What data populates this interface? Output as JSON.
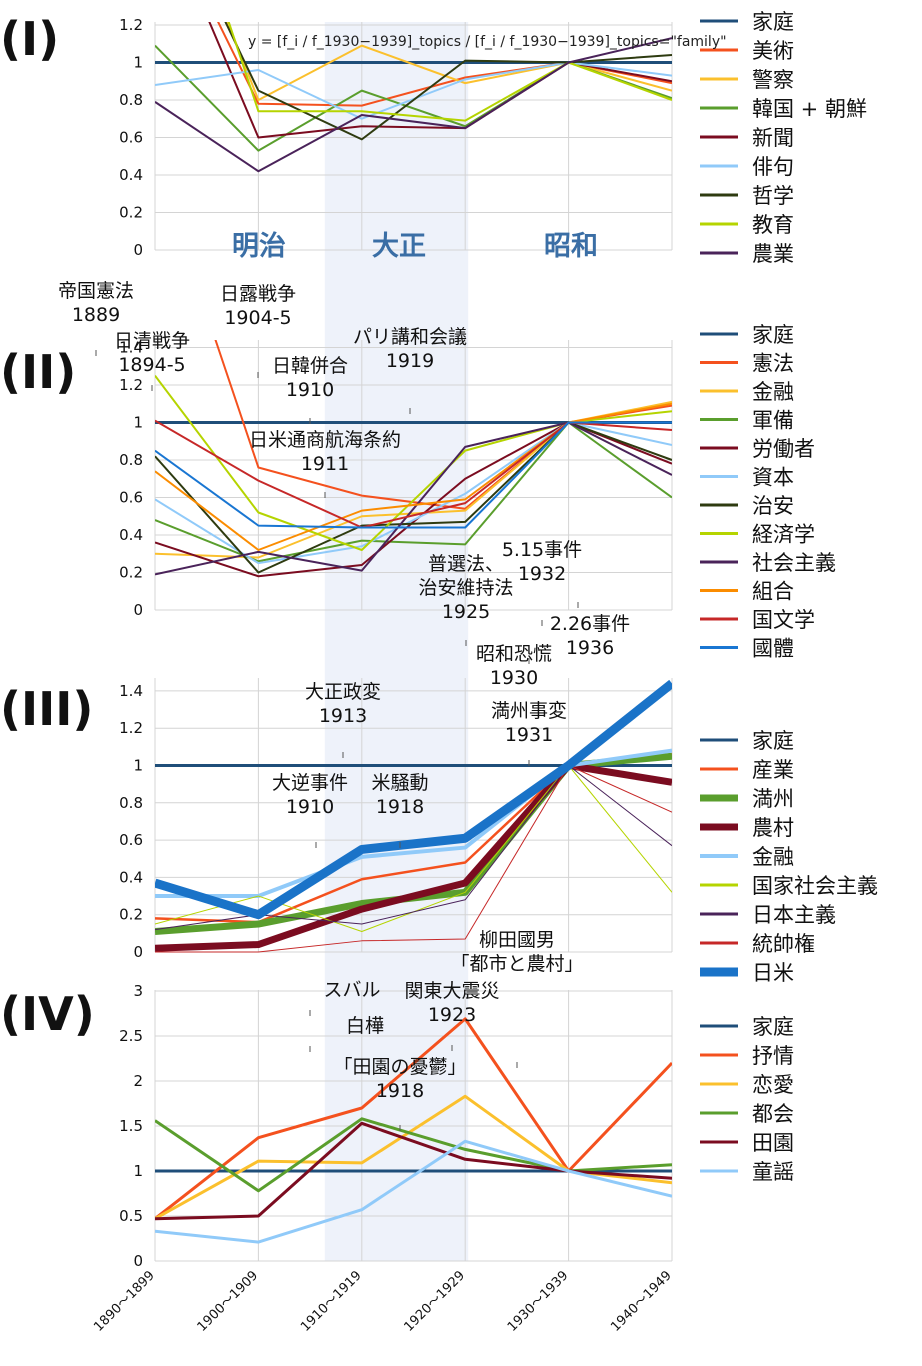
{
  "categories": [
    "1890～1899",
    "1900～1909",
    "1910～1919",
    "1920～1929",
    "1930～1939",
    "1940～1949"
  ],
  "shade": {
    "from": 1910,
    "to": 1929,
    "color": "#eef2fa"
  },
  "formula": "y = [f_i / f_1930−1939]_topics / [f_i / f_1930−1939]_topics=\"family\"",
  "era_labels": [
    "明治",
    "大正",
    "昭和"
  ],
  "chart_data": [
    {
      "type": "line",
      "panel": "(I)",
      "ylim": [
        0,
        1.5
      ],
      "yticks": [
        "0",
        "0.2",
        "0.4",
        "0.6",
        "0.8",
        "1",
        "1.2",
        "1.4"
      ],
      "grid": true,
      "legend": "right",
      "series": [
        {
          "name": "家庭",
          "color": "#1f4e79",
          "width": 3,
          "values": [
            1,
            1,
            1,
            1,
            1,
            1
          ]
        },
        {
          "name": "美術",
          "color": "#f4511e",
          "width": 2,
          "values": [
            1.9,
            0.78,
            0.77,
            0.92,
            1,
            0.89
          ]
        },
        {
          "name": "警察",
          "color": "#fbc02d",
          "width": 2,
          "values": [
            2.2,
            0.8,
            1.09,
            0.89,
            1,
            0.85
          ]
        },
        {
          "name": "韓国 + 朝鮮",
          "color": "#5a9e2d",
          "width": 2,
          "values": [
            1.09,
            0.53,
            0.85,
            0.66,
            1,
            0.81
          ]
        },
        {
          "name": "新聞",
          "color": "#7b0c20",
          "width": 2,
          "values": [
            1.9,
            0.6,
            0.66,
            0.65,
            1,
            0.9
          ]
        },
        {
          "name": "俳句",
          "color": "#90caf9",
          "width": 2,
          "values": [
            0.88,
            0.96,
            0.7,
            0.91,
            1,
            0.93
          ]
        },
        {
          "name": "哲学",
          "color": "#2e3b10",
          "width": 2,
          "values": [
            2.0,
            0.85,
            0.59,
            1.01,
            1,
            1.04
          ]
        },
        {
          "name": "教育",
          "color": "#b5d400",
          "width": 2,
          "values": [
            2.4,
            0.74,
            0.74,
            0.69,
            1,
            0.8
          ]
        },
        {
          "name": "農業",
          "color": "#4a235a",
          "width": 2,
          "values": [
            0.79,
            0.42,
            0.72,
            0.65,
            1,
            1.13
          ]
        }
      ]
    },
    {
      "type": "line",
      "panel": "(II)",
      "ylim": [
        0,
        1.5
      ],
      "yticks": [
        "0",
        "0.2",
        "0.4",
        "0.6",
        "0.8",
        "1",
        "1.2",
        "1.4"
      ],
      "grid": true,
      "legend": "right",
      "series": [
        {
          "name": "家庭",
          "color": "#1f4e79",
          "width": 3,
          "values": [
            1,
            1,
            1,
            1,
            1,
            1
          ]
        },
        {
          "name": "憲法",
          "color": "#f4511e",
          "width": 2,
          "values": [
            2.4,
            0.76,
            0.61,
            0.54,
            1,
            1.09
          ]
        },
        {
          "name": "金融",
          "color": "#fbc02d",
          "width": 2,
          "values": [
            0.3,
            0.28,
            0.5,
            0.53,
            1,
            1.11
          ]
        },
        {
          "name": "軍備",
          "color": "#5a9e2d",
          "width": 2,
          "values": [
            0.48,
            0.26,
            0.37,
            0.35,
            1,
            0.6
          ]
        },
        {
          "name": "労働者",
          "color": "#7b0c20",
          "width": 2,
          "values": [
            0.36,
            0.18,
            0.24,
            0.7,
            1,
            0.78
          ]
        },
        {
          "name": "資本",
          "color": "#90caf9",
          "width": 2,
          "values": [
            0.59,
            0.25,
            0.34,
            0.62,
            1,
            0.88
          ]
        },
        {
          "name": "治安",
          "color": "#2e3b10",
          "width": 2,
          "values": [
            0.82,
            0.2,
            0.45,
            0.47,
            1,
            0.8
          ]
        },
        {
          "name": "経済学",
          "color": "#b5d400",
          "width": 2,
          "values": [
            1.25,
            0.52,
            0.32,
            0.85,
            1,
            1.06
          ]
        },
        {
          "name": "社会主義",
          "color": "#4a235a",
          "width": 2,
          "values": [
            0.19,
            0.31,
            0.21,
            0.87,
            1,
            0.72
          ]
        },
        {
          "name": "組合",
          "color": "#fb8c00",
          "width": 2,
          "values": [
            0.74,
            0.32,
            0.53,
            0.59,
            1,
            1.1
          ]
        },
        {
          "name": "国文学",
          "color": "#c62828",
          "width": 2,
          "values": [
            1.01,
            0.69,
            0.44,
            0.57,
            1,
            0.96
          ]
        },
        {
          "name": "國體",
          "color": "#1976d2",
          "width": 2,
          "values": [
            0.85,
            0.45,
            0.44,
            0.44,
            1,
            1.0
          ]
        }
      ],
      "annotations": [
        {
          "text": [
            "帝国憲法",
            "1889"
          ]
        },
        {
          "text": [
            "日露戦争",
            "1904-5"
          ]
        },
        {
          "text": [
            "日清戦争",
            "1894-5"
          ]
        },
        {
          "text": [
            "日韓併合",
            "1910"
          ]
        },
        {
          "text": [
            "パリ講和会議",
            "1919"
          ]
        },
        {
          "text": [
            "日米通商航海条約",
            "1911"
          ]
        },
        {
          "text": [
            "普選法、",
            "治安維持法",
            "1925"
          ]
        },
        {
          "text": [
            "5.15事件",
            "1932"
          ]
        },
        {
          "text": [
            "2.26事件",
            "1936"
          ]
        }
      ]
    },
    {
      "type": "line",
      "panel": "(III)",
      "ylim": [
        0,
        1.5
      ],
      "yticks": [
        "0",
        "0.2",
        "0.4",
        "0.6",
        "0.8",
        "1",
        "1.2",
        "1.4"
      ],
      "grid": true,
      "legend": "right",
      "series": [
        {
          "name": "家庭",
          "color": "#1f4e79",
          "width": 3,
          "values": [
            1,
            1,
            1,
            1,
            1,
            1
          ]
        },
        {
          "name": "産業",
          "color": "#f4511e",
          "width": 2.5,
          "values": [
            0.18,
            0.16,
            0.39,
            0.48,
            1,
            1.06
          ]
        },
        {
          "name": "満州",
          "color": "#5a9e2d",
          "width": 7,
          "values": [
            0.11,
            0.15,
            0.26,
            0.32,
            1,
            1.05
          ]
        },
        {
          "name": "農村",
          "color": "#7b0c20",
          "width": 7,
          "values": [
            0.02,
            0.04,
            0.23,
            0.37,
            1,
            0.91
          ]
        },
        {
          "name": "金融",
          "color": "#90caf9",
          "width": 4,
          "values": [
            0.3,
            0.3,
            0.51,
            0.56,
            1,
            1.08
          ]
        },
        {
          "name": "国家社会主義",
          "color": "#b5d400",
          "width": 1,
          "values": [
            0.15,
            0.3,
            0.11,
            0.32,
            1,
            0.32
          ]
        },
        {
          "name": "日本主義",
          "color": "#4a235a",
          "width": 1,
          "values": [
            0.12,
            0.2,
            0.15,
            0.28,
            1,
            0.57
          ]
        },
        {
          "name": "統帥権",
          "color": "#c62828",
          "width": 1,
          "values": [
            0.0,
            0.0,
            0.06,
            0.07,
            1,
            0.75
          ]
        },
        {
          "name": "日米",
          "color": "#1a73c8",
          "width": 9,
          "values": [
            0.37,
            0.2,
            0.55,
            0.61,
            1,
            1.44
          ]
        }
      ],
      "annotations": [
        {
          "text": [
            "昭和恐慌",
            "1930"
          ]
        },
        {
          "text": [
            "大正政変",
            "1913"
          ]
        },
        {
          "text": [
            "満州事変",
            "1931"
          ]
        },
        {
          "text": [
            "大逆事件",
            "1910"
          ]
        },
        {
          "text": [
            "米騒動",
            "1918"
          ]
        }
      ]
    },
    {
      "type": "line",
      "panel": "(IV)",
      "ylim": [
        0,
        3
      ],
      "yticks": [
        "0",
        "0.5",
        "1",
        "1.5",
        "2",
        "2.5",
        "3"
      ],
      "grid": true,
      "legend": "right",
      "series": [
        {
          "name": "家庭",
          "color": "#1f4e79",
          "width": 3,
          "values": [
            1,
            1,
            1,
            1,
            1,
            1
          ]
        },
        {
          "name": "抒情",
          "color": "#f4511e",
          "width": 3,
          "values": [
            0.47,
            1.37,
            1.7,
            2.69,
            1,
            2.2
          ]
        },
        {
          "name": "恋愛",
          "color": "#fbc02d",
          "width": 3,
          "values": [
            0.47,
            1.11,
            1.09,
            1.83,
            1,
            0.87
          ]
        },
        {
          "name": "都会",
          "color": "#5a9e2d",
          "width": 3,
          "values": [
            1.56,
            0.78,
            1.58,
            1.24,
            1,
            1.07
          ]
        },
        {
          "name": "田園",
          "color": "#7b0c20",
          "width": 3,
          "values": [
            0.47,
            0.5,
            1.53,
            1.13,
            1,
            0.92
          ]
        },
        {
          "name": "童謡",
          "color": "#90caf9",
          "width": 3,
          "values": [
            0.33,
            0.21,
            0.57,
            1.33,
            1,
            0.72
          ]
        }
      ],
      "annotations": [
        {
          "text": [
            "柳田國男",
            "「都市と農村」"
          ]
        },
        {
          "text": [
            "関東大震災",
            "1923"
          ]
        },
        {
          "text": [
            "スバル"
          ]
        },
        {
          "text": [
            "白樺"
          ]
        },
        {
          "text": [
            "「田園の憂鬱」",
            "1918"
          ]
        }
      ]
    }
  ]
}
